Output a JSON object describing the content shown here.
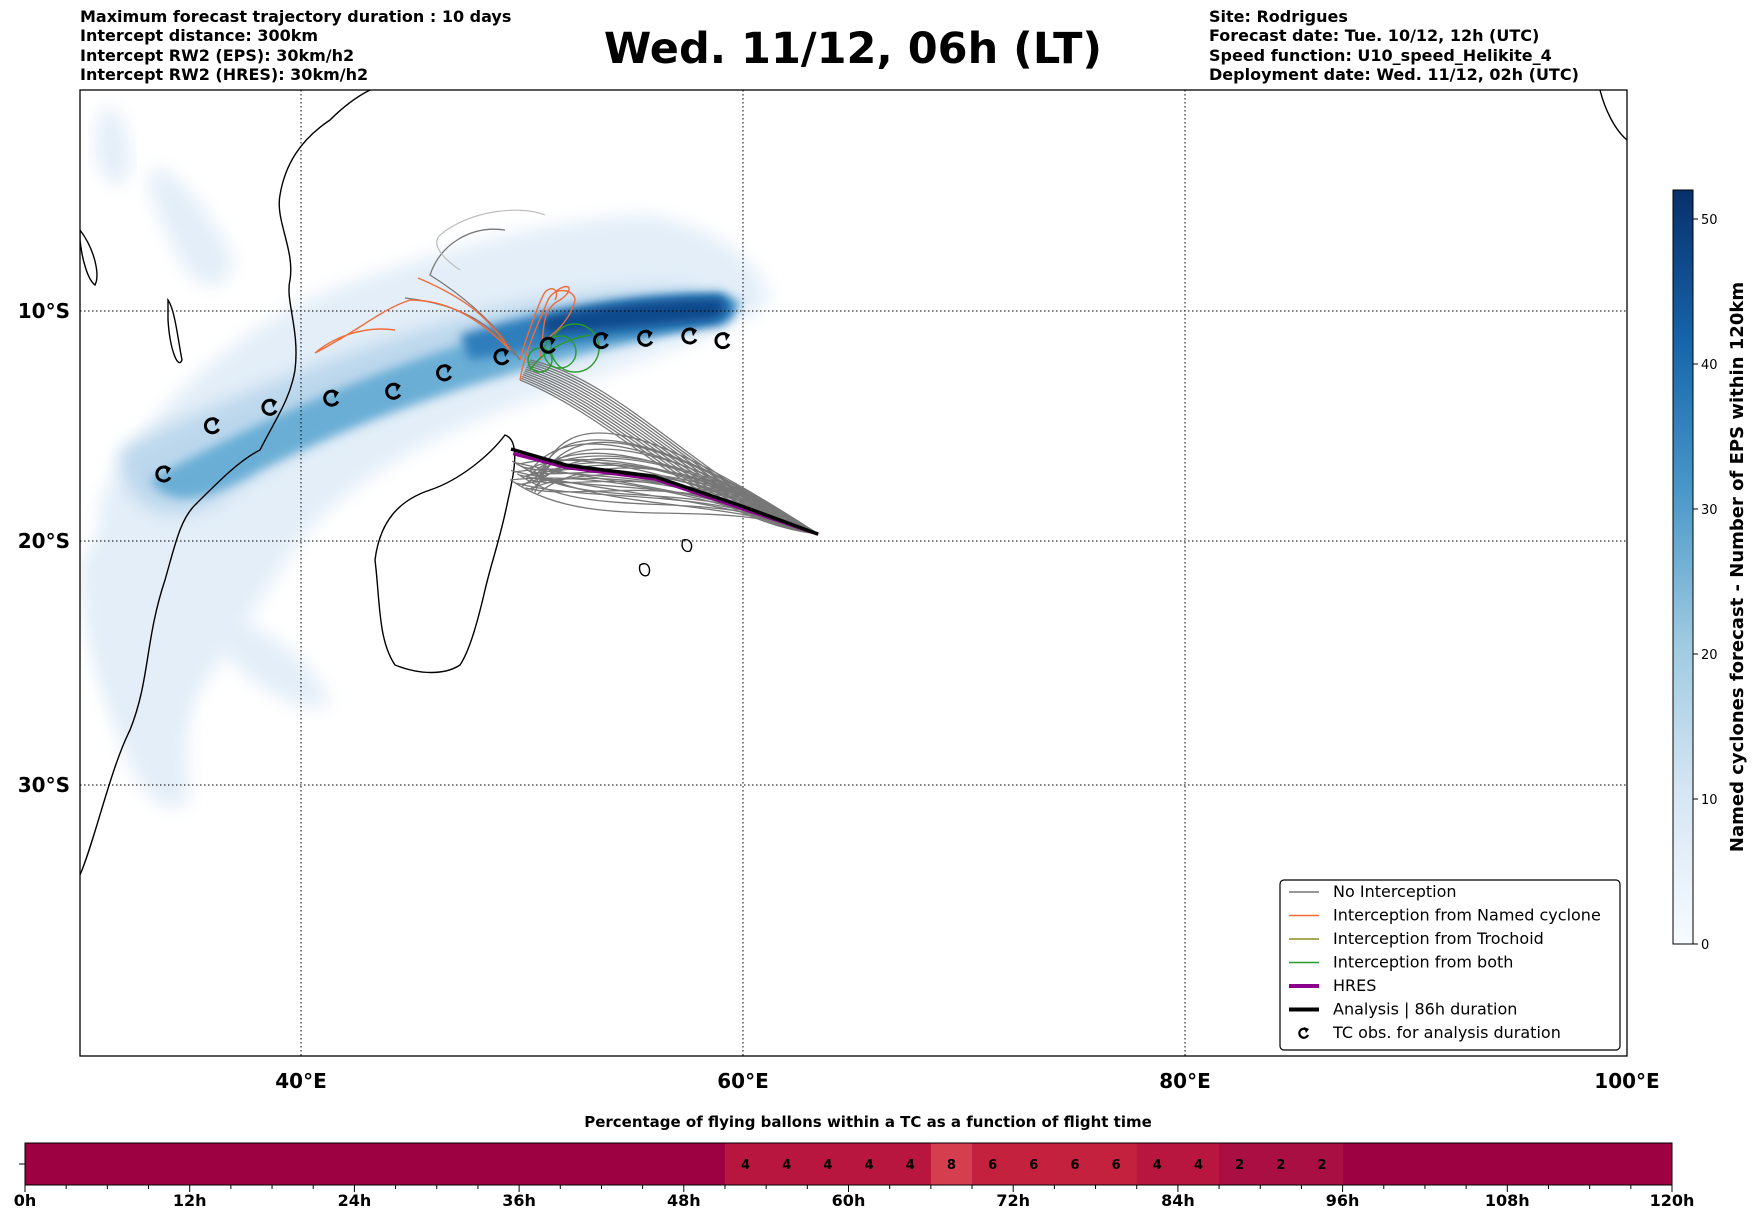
{
  "header": {
    "left_lines": [
      "Maximum forecast trajectory duration : 10 days",
      "Intercept distance: 300km",
      "Intercept RW2 (EPS):  30km/h2",
      "Intercept RW2 (HRES): 30km/h2"
    ],
    "title": "Wed. 11/12, 06h (LT)",
    "right_lines": [
      "Site: Rodrigues",
      "Forecast date: Tue. 10/12, 12h (UTC)",
      "Speed function: U10_speed_Helikite_4",
      "Deployment date: Wed. 11/12, 02h (UTC)"
    ]
  },
  "chart_data": [
    {
      "type": "map",
      "x_ticks": [
        {
          "value": 40,
          "label": "40°E"
        },
        {
          "value": 60,
          "label": "60°E"
        },
        {
          "value": 80,
          "label": "80°E"
        },
        {
          "value": 100,
          "label": "100°E"
        }
      ],
      "y_ticks": [
        {
          "value": -10,
          "label": "10°S"
        },
        {
          "value": -20,
          "label": "20°S"
        },
        {
          "value": -30,
          "label": "30°S"
        }
      ],
      "xlim": [
        30,
        100
      ],
      "ylim": [
        -42,
        2
      ],
      "grid": true,
      "legend_position": "bottom-right",
      "legend": [
        {
          "label": "No Interception",
          "color": "#777777",
          "style": "line"
        },
        {
          "label": "Interception from Named cyclone",
          "color": "#f26b3a",
          "style": "line"
        },
        {
          "label": "Interception from Trochoid",
          "color": "#8c8c1e",
          "style": "line"
        },
        {
          "label": "Interception from both",
          "color": "#2a9a2a",
          "style": "line"
        },
        {
          "label": "HRES",
          "color": "#8b008b",
          "style": "thick-line"
        },
        {
          "label": "Analysis | 86h duration",
          "color": "#000000",
          "style": "thick-line"
        },
        {
          "label": "TC obs. for analysis duration",
          "color": "#000000",
          "style": "cyclone-symbol"
        }
      ],
      "site_start": [
        63.4,
        -19.7
      ],
      "analysis_track": [
        [
          63.4,
          -19.7
        ],
        [
          60,
          -18.5
        ],
        [
          56,
          -17.2
        ],
        [
          52,
          -16.7
        ],
        [
          49.5,
          -16.0
        ]
      ],
      "hres_track": [
        [
          63.4,
          -19.7
        ],
        [
          60,
          -18.6
        ],
        [
          56,
          -17.3
        ],
        [
          52,
          -16.8
        ],
        [
          49.6,
          -16.2
        ]
      ],
      "tc_obs": [
        [
          59.1,
          -11.3
        ],
        [
          57.6,
          -11.1
        ],
        [
          55.6,
          -11.2
        ],
        [
          53.6,
          -11.3
        ],
        [
          51.2,
          -11.5
        ],
        [
          49.1,
          -12.0
        ],
        [
          46.5,
          -12.7
        ],
        [
          44.2,
          -13.5
        ],
        [
          41.4,
          -13.8
        ],
        [
          38.6,
          -14.2
        ],
        [
          36.0,
          -15.0
        ],
        [
          33.8,
          -17.1
        ]
      ],
      "colorbar": {
        "label": "Named cyclones forecast - Number of EPS within 120km",
        "range": [
          0,
          52
        ],
        "ticks": [
          0,
          10,
          20,
          30,
          40,
          50
        ],
        "color_low": "#f7fbff",
        "color_high": "#08306b"
      }
    },
    {
      "type": "heatmap",
      "title": "Percentage of flying ballons within a TC as a function of flight time",
      "x_ticks": [
        {
          "value": 0,
          "label": "0h"
        },
        {
          "value": 12,
          "label": "12h"
        },
        {
          "value": 24,
          "label": "24h"
        },
        {
          "value": 36,
          "label": "36h"
        },
        {
          "value": 48,
          "label": "48h"
        },
        {
          "value": 60,
          "label": "60h"
        },
        {
          "value": 72,
          "label": "72h"
        },
        {
          "value": 84,
          "label": "84h"
        },
        {
          "value": 96,
          "label": "96h"
        },
        {
          "value": 108,
          "label": "108h"
        },
        {
          "value": 120,
          "label": "120h"
        }
      ],
      "xlim": [
        0,
        120
      ],
      "cells": [
        {
          "start": 51,
          "end": 54,
          "value": 4
        },
        {
          "start": 54,
          "end": 57,
          "value": 4
        },
        {
          "start": 57,
          "end": 60,
          "value": 4
        },
        {
          "start": 60,
          "end": 63,
          "value": 4
        },
        {
          "start": 63,
          "end": 66,
          "value": 4
        },
        {
          "start": 66,
          "end": 69,
          "value": 8
        },
        {
          "start": 69,
          "end": 72,
          "value": 6
        },
        {
          "start": 72,
          "end": 75,
          "value": 6
        },
        {
          "start": 75,
          "end": 78,
          "value": 6
        },
        {
          "start": 78,
          "end": 81,
          "value": 6
        },
        {
          "start": 81,
          "end": 84,
          "value": 4
        },
        {
          "start": 84,
          "end": 87,
          "value": 4
        },
        {
          "start": 87,
          "end": 90,
          "value": 2
        },
        {
          "start": 90,
          "end": 93,
          "value": 2
        },
        {
          "start": 93,
          "end": 96,
          "value": 2
        }
      ],
      "colors": {
        "zero": "#9e0142",
        "2": "#aa0f43",
        "4": "#b8163f",
        "6": "#c4213f",
        "8": "#d53e4f"
      }
    }
  ]
}
